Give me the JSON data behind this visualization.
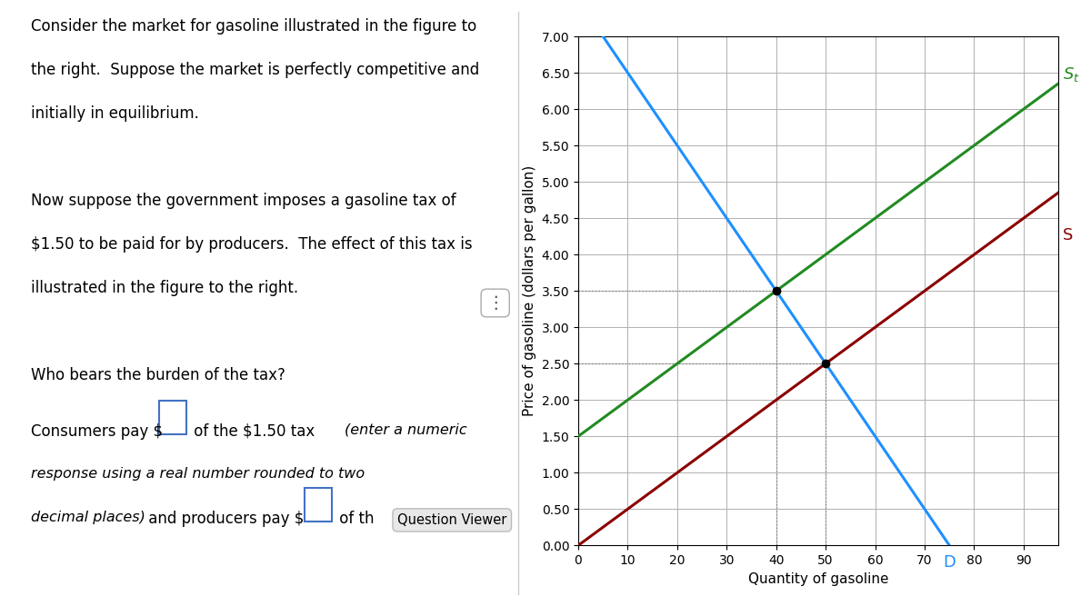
{
  "xlabel": "Quantity of gasoline",
  "ylabel": "Price of gasoline (dollars per gallon)",
  "xlim": [
    0,
    97
  ],
  "ylim": [
    0,
    7.0
  ],
  "xticks": [
    0,
    10,
    20,
    30,
    40,
    50,
    60,
    70,
    80,
    90
  ],
  "yticks": [
    0.0,
    0.5,
    1.0,
    1.5,
    2.0,
    2.5,
    3.0,
    3.5,
    4.0,
    4.5,
    5.0,
    5.5,
    6.0,
    6.5,
    7.0
  ],
  "supply_color": "#8B0000",
  "supply_tax_color": "#228B22",
  "demand_color": "#1E90FF",
  "supply_slope": 0.05,
  "supply_intercept": 0.0,
  "supply_tax_intercept": 1.5,
  "demand_slope": -0.1,
  "demand_intercept": 7.5,
  "eq1_x": 50,
  "eq1_y": 2.5,
  "eq2_x": 40,
  "eq2_y": 3.5,
  "dotted_color": "#888888",
  "background_color": "#ffffff",
  "grid_color": "#b0b0b0",
  "label_fontsize": 13,
  "axis_label_fontsize": 11,
  "tick_fontsize": 10,
  "line_width": 2.2,
  "text_lines": [
    "Consider the market for gasoline illustrated in the figure to",
    "the right.  Suppose the market is perfectly competitive and",
    "initially in equilibrium.",
    "",
    "Now suppose the government imposes a gasoline tax of",
    "$1.50 to be paid for by producers.  The effect of this tax is",
    "illustrated in the figure to the right.",
    "",
    "Who bears the burden of the tax?"
  ],
  "text_line2a": "Consumers pay $",
  "text_line2b": " of the $1.50 tax ",
  "text_line2c": "(enter a numeric",
  "text_line2d": "response using a real number rounded to two",
  "text_line2e": "decimal places)",
  "text_line2f": " and producers pay $",
  "text_line2g": " of th",
  "qv_label": "Question Viewer",
  "text_fontsize": 12.0,
  "italic_fontsize": 11.5
}
